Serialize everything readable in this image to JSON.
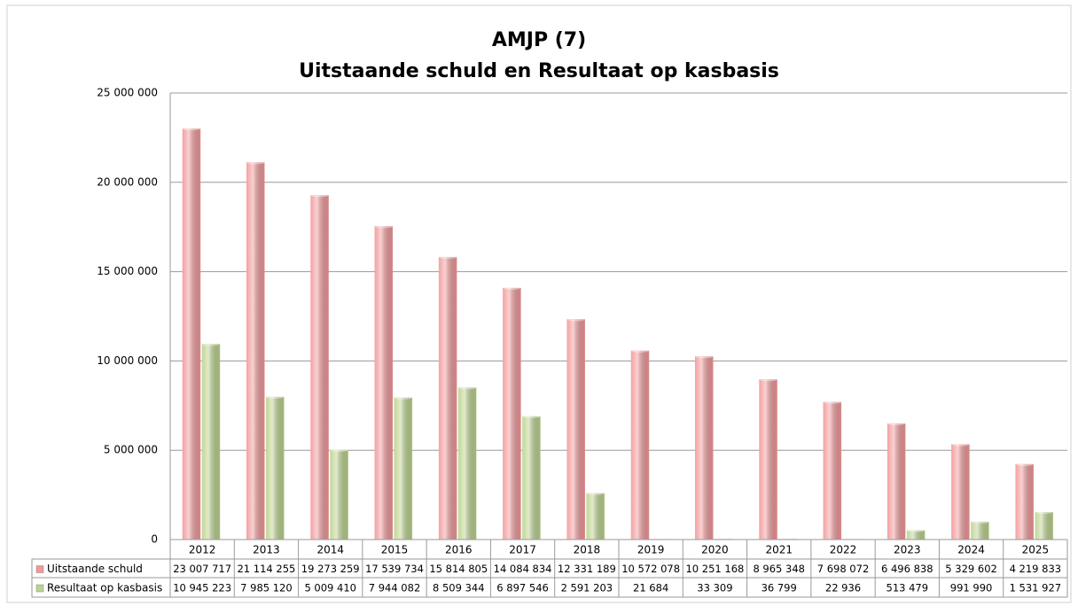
{
  "chart_data": {
    "type": "bar",
    "title": "AMJP (7)",
    "subtitle": "Uitstaande schuld en Resultaat op kasbasis",
    "categories": [
      "2012",
      "2013",
      "2014",
      "2015",
      "2016",
      "2017",
      "2018",
      "2019",
      "2020",
      "2021",
      "2022",
      "2023",
      "2024",
      "2025"
    ],
    "series": [
      {
        "name": "Uitstaande schuld",
        "color": "#f2999b",
        "values": [
          23007717,
          21114255,
          19273259,
          17539734,
          15814805,
          14084834,
          12331189,
          10572078,
          10251168,
          8965348,
          7698072,
          6496838,
          5329602,
          4219833
        ],
        "value_labels": [
          "23 007 717",
          "21 114 255",
          "19 273 259",
          "17 539 734",
          "15 814 805",
          "14 084 834",
          "12 331 189",
          "10 572 078",
          "10 251 168",
          "8 965 348",
          "7 698 072",
          "6 496 838",
          "5 329 602",
          "4 219 833"
        ]
      },
      {
        "name": "Resultaat op kasbasis",
        "color": "#bcd38f",
        "values": [
          10945223,
          7985120,
          5009410,
          7944082,
          8509344,
          6897546,
          2591203,
          21684,
          33309,
          36799,
          22936,
          513479,
          991990,
          1531927
        ],
        "value_labels": [
          "10 945 223",
          "7 985 120",
          "5 009 410",
          "7 944 082",
          "8 509 344",
          "6 897 546",
          "2 591 203",
          "21 684",
          "33 309",
          "36 799",
          "22 936",
          "513 479",
          "991 990",
          "1 531 927"
        ]
      }
    ],
    "ylim": [
      0,
      25000000
    ],
    "yticks": [
      {
        "value": 0,
        "label": "0"
      },
      {
        "value": 5000000,
        "label": "5 000 000"
      },
      {
        "value": 10000000,
        "label": "10 000 000"
      },
      {
        "value": 15000000,
        "label": "15 000 000"
      },
      {
        "value": 20000000,
        "label": "20 000 000"
      },
      {
        "value": 25000000,
        "label": "25 000 000"
      }
    ],
    "grid": true
  }
}
